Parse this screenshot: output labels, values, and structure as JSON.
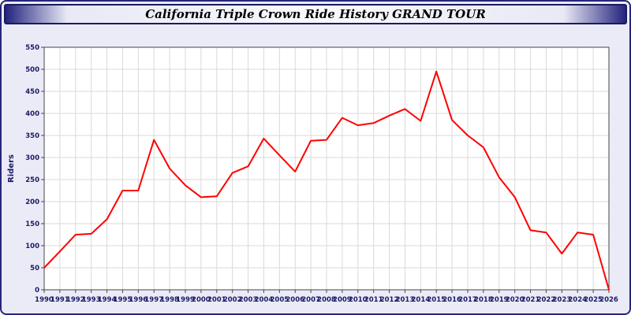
{
  "window": {
    "title": "California Triple Crown Ride History GRAND TOUR"
  },
  "colors": {
    "line": "#ff0000",
    "background": "#ebebf7",
    "plot_background": "#ffffff",
    "grid": "#d9d9d9",
    "axis": "#444444",
    "tick_label": "#1a1a66",
    "window_border": "#26267c"
  },
  "chart_data": {
    "type": "line",
    "title": "California Triple Crown Ride History GRAND TOUR",
    "xlabel": "",
    "ylabel": "Riders",
    "ylim": [
      0,
      550
    ],
    "ytick_step": 50,
    "grid": true,
    "legend": "none",
    "x": [
      1990,
      1991,
      1992,
      1993,
      1994,
      1995,
      1996,
      1997,
      1998,
      1999,
      2000,
      2001,
      2002,
      2003,
      2004,
      2005,
      2006,
      2007,
      2008,
      2009,
      2010,
      2011,
      2012,
      2013,
      2014,
      2015,
      2016,
      2017,
      2018,
      2019,
      2020,
      2021,
      2022,
      2023,
      2024,
      2025,
      2026
    ],
    "series": [
      {
        "name": "Riders",
        "color": "#ff0000",
        "values": [
          50,
          87,
          125,
          127,
          160,
          225,
          225,
          340,
          275,
          237,
          210,
          212,
          265,
          280,
          343,
          305,
          268,
          338,
          340,
          390,
          373,
          378,
          395,
          410,
          383,
          495,
          385,
          350,
          323,
          255,
          210,
          135,
          130,
          82,
          130,
          125,
          0
        ]
      }
    ]
  }
}
